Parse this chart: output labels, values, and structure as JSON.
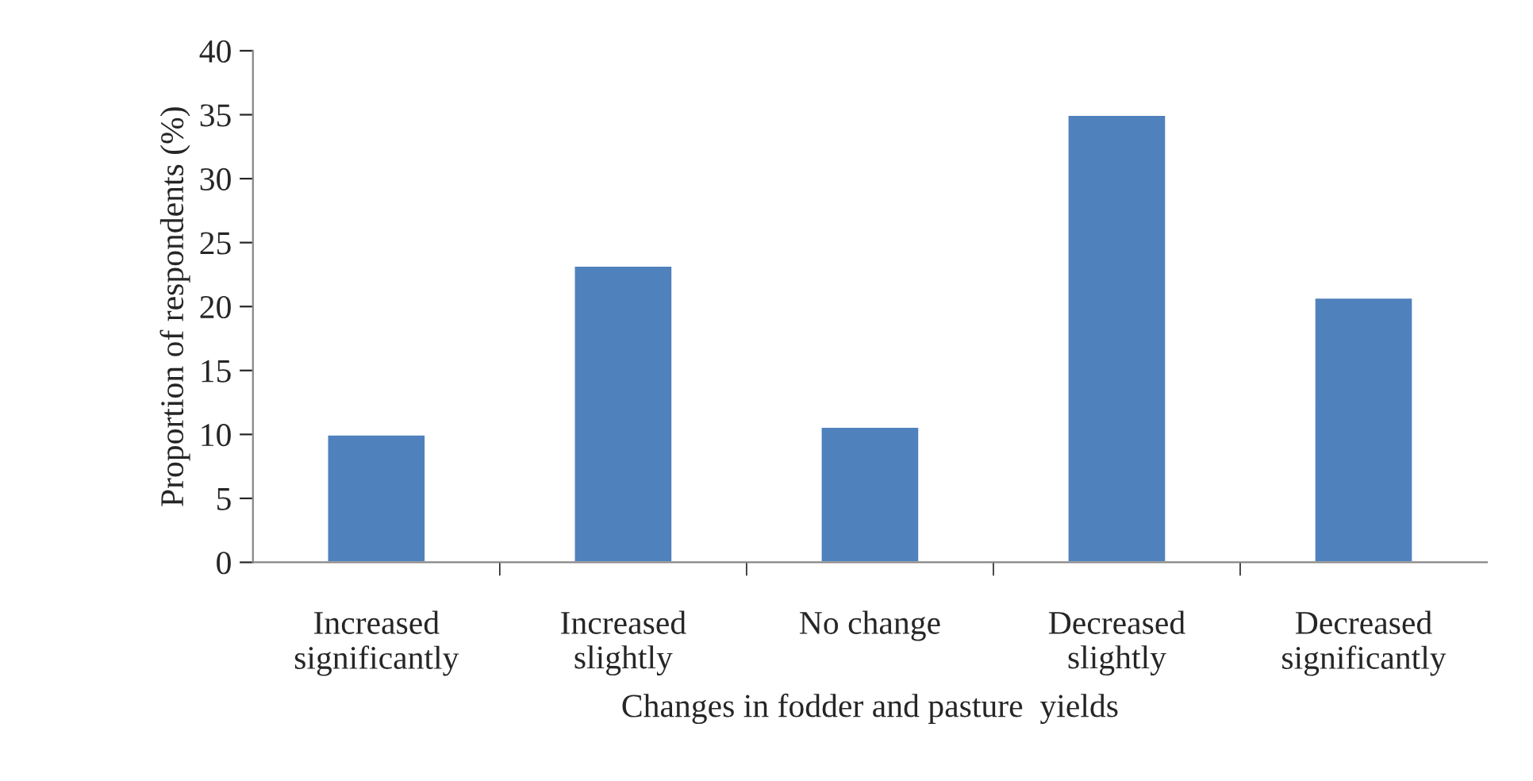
{
  "chart_data": {
    "type": "bar",
    "xlabel": "Changes in fodder and pasture  yields",
    "ylabel": "Proportion of respondents (%)",
    "categories": [
      "Increased\nsignificantly",
      "Increased\nslightly",
      "No change",
      "Decreased\nslightly",
      "Decreased\nsignificantly"
    ],
    "values": [
      10,
      23.2,
      10.6,
      35,
      20.7
    ],
    "color": "#4f81bd",
    "ylim": [
      0,
      40
    ],
    "yticks": [
      0,
      5,
      10,
      15,
      20,
      25,
      30,
      35,
      40
    ],
    "grid": false,
    "legend": false
  }
}
